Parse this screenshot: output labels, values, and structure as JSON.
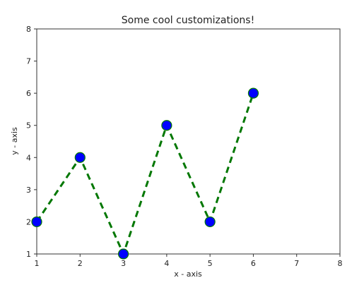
{
  "chart_data": {
    "type": "line",
    "title": "Some cool customizations!",
    "xlabel": "x - axis",
    "ylabel": "y - axis",
    "xlim": [
      1,
      8
    ],
    "ylim": [
      1,
      8
    ],
    "xticks": [
      1,
      2,
      3,
      4,
      5,
      6,
      7,
      8
    ],
    "yticks": [
      1,
      2,
      3,
      4,
      5,
      6,
      7,
      8
    ],
    "grid": false,
    "series": [
      {
        "x": [
          1,
          2,
          3,
          4,
          5,
          6
        ],
        "y": [
          2,
          4,
          1,
          5,
          2,
          6
        ],
        "line_color": "#007700",
        "line_style": "dashed",
        "marker": "circle",
        "marker_color": "#0000ff"
      }
    ]
  }
}
